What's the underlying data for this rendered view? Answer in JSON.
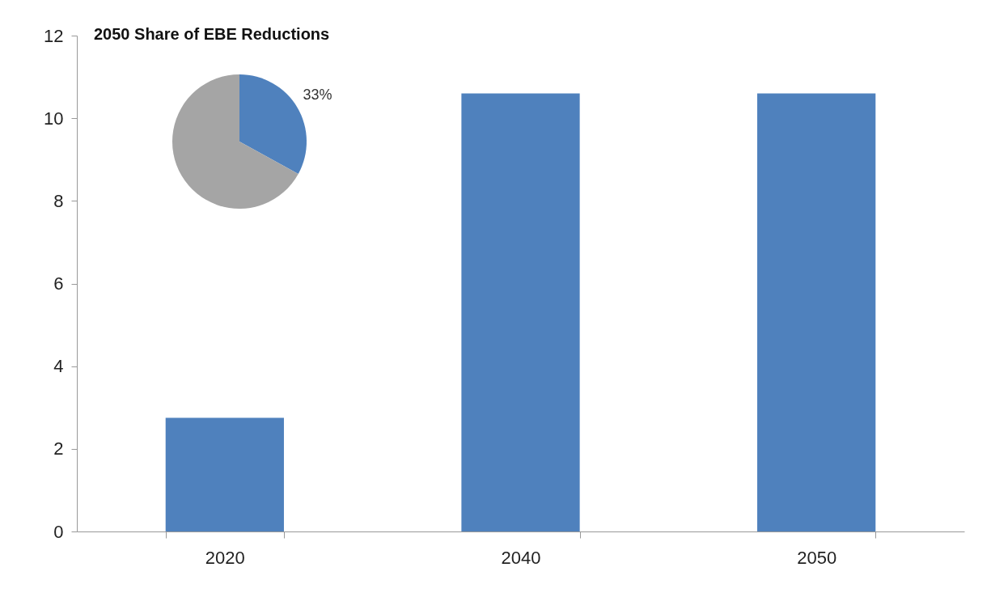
{
  "chart_data": [
    {
      "type": "bar",
      "categories": [
        "2020",
        "2040",
        "2050"
      ],
      "values": [
        2.75,
        10.6,
        10.6
      ],
      "color": "#4f81bd",
      "ylim": [
        0,
        12
      ],
      "yticks": [
        0,
        2,
        4,
        6,
        8,
        10,
        12
      ]
    },
    {
      "type": "pie",
      "title": "2050 Share of EBE Reductions",
      "categories": [
        null,
        null
      ],
      "values": [
        33,
        67
      ],
      "colors": [
        "#4f81bd",
        "#a5a5a5"
      ],
      "value_labels": [
        "33%",
        null
      ]
    }
  ]
}
